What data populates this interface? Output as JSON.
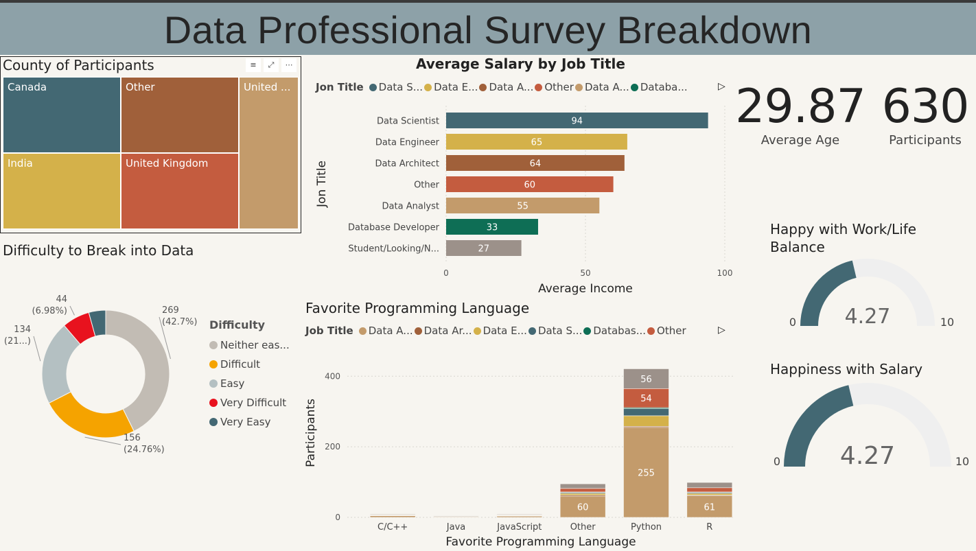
{
  "header": {
    "title": "Data Professional Survey Breakdown"
  },
  "treemap": {
    "title": "County of Participants",
    "tools": [
      "filter-icon",
      "focus-icon",
      "more-icon"
    ],
    "cells": [
      {
        "label": "Canada",
        "color": "#436873"
      },
      {
        "label": "Other",
        "color": "#a0603a"
      },
      {
        "label": "United ...",
        "color": "#c39b6b"
      },
      {
        "label": "India",
        "color": "#d4b14a"
      },
      {
        "label": "United Kingdom",
        "color": "#c45c3f"
      }
    ]
  },
  "salary_chart": {
    "title": "Average Salary by Job Title",
    "legend_title": "Jon Title",
    "legend_items": [
      {
        "label": "Data S...",
        "color": "#436873"
      },
      {
        "label": "Data E...",
        "color": "#d4b14a"
      },
      {
        "label": "Data A...",
        "color": "#a0603a"
      },
      {
        "label": "Other",
        "color": "#c45c3f"
      },
      {
        "label": "Data A...",
        "color": "#c39b6b"
      },
      {
        "label": "Databa...",
        "color": "#0e6e55"
      }
    ]
  },
  "programming_chart": {
    "title": "Favorite Programming Language",
    "legend_title": "Job Title",
    "legend_items": [
      {
        "label": "Data A...",
        "color": "#c39b6b"
      },
      {
        "label": "Data Ar...",
        "color": "#a0603a"
      },
      {
        "label": "Data E...",
        "color": "#d4b14a"
      },
      {
        "label": "Data S...",
        "color": "#436873"
      },
      {
        "label": "Databas...",
        "color": "#0e6e55"
      },
      {
        "label": "Other",
        "color": "#c45c3f"
      }
    ]
  },
  "difficulty": {
    "title": "Difficulty to Break into Data",
    "legend_title": "Difficulty",
    "legend_items": [
      {
        "label": "Neither eas...",
        "color": "#c2bcb4"
      },
      {
        "label": "Difficult",
        "color": "#f5a300"
      },
      {
        "label": "Easy",
        "color": "#b4c0c2"
      },
      {
        "label": "Very Difficult",
        "color": "#e8121e"
      },
      {
        "label": "Very Easy",
        "color": "#436873"
      }
    ]
  },
  "kpis": {
    "age": {
      "value": "29.87",
      "label": "Average Age"
    },
    "participants": {
      "value": "630",
      "label": "Participants"
    }
  },
  "gauges": [
    {
      "title_line1": "Happy with Work/Life",
      "title_line2": "Balance",
      "value": 4.27,
      "value_label": "4.27",
      "min_label": "0",
      "max_label": "10",
      "min": 0,
      "max": 10,
      "fill_color": "#436873",
      "track_color": "#efefef"
    },
    {
      "title_line1": "Happiness with Salary",
      "title_line2": "",
      "value": 4.27,
      "value_label": "4.27",
      "min_label": "0",
      "max_label": "10",
      "min": 0,
      "max": 10,
      "fill_color": "#436873",
      "track_color": "#efefef"
    }
  ],
  "chart_data": [
    {
      "type": "bar",
      "orientation": "horizontal",
      "title": "Average Salary by Job Title",
      "xlabel": "Average Income",
      "ylabel": "Jon Title",
      "xlim": [
        0,
        100
      ],
      "xticks": [
        "0",
        "50",
        "100"
      ],
      "categories": [
        "Data Scientist",
        "Data Engineer",
        "Data Architect",
        "Other",
        "Data Analyst",
        "Database Developer",
        "Student/Looking/N..."
      ],
      "values": [
        94,
        65,
        64,
        60,
        55,
        33,
        27
      ],
      "colors": [
        "#436873",
        "#d4b14a",
        "#a0603a",
        "#c45c3f",
        "#c39b6b",
        "#0e6e55",
        "#9c918a"
      ]
    },
    {
      "type": "bar",
      "stacked": true,
      "title": "Favorite Programming Language",
      "xlabel": "Favorite Programming Language",
      "ylabel": "Participants",
      "ylim": [
        0,
        420
      ],
      "yticks": [
        "0",
        "200",
        "400"
      ],
      "categories": [
        "C/C++",
        "Java",
        "JavaScript",
        "Other",
        "Python",
        "R"
      ],
      "series": [
        {
          "color": "#c39b6b",
          "values": [
            5,
            2,
            4,
            60,
            255,
            61
          ]
        },
        {
          "color": "#a0603a",
          "values": [
            1,
            0,
            1,
            3,
            3,
            2
          ]
        },
        {
          "color": "#d4b14a",
          "values": [
            1,
            0,
            1,
            5,
            30,
            5
          ]
        },
        {
          "color": "#436873",
          "values": [
            1,
            0,
            1,
            3,
            20,
            3
          ]
        },
        {
          "color": "#0e6e55",
          "values": [
            0,
            0,
            0,
            1,
            3,
            1
          ]
        },
        {
          "color": "#c45c3f",
          "values": [
            1,
            1,
            1,
            10,
            54,
            12
          ]
        },
        {
          "color": "#9c918a",
          "values": [
            1,
            1,
            1,
            13,
            56,
            15
          ]
        }
      ],
      "data_labels": [
        {
          "category": "Other",
          "series": 0,
          "text": "60"
        },
        {
          "category": "Python",
          "series": 0,
          "text": "255"
        },
        {
          "category": "Python",
          "series": 5,
          "text": "54"
        },
        {
          "category": "Python",
          "series": 6,
          "text": "56"
        },
        {
          "category": "R",
          "series": 0,
          "text": "61"
        }
      ]
    },
    {
      "type": "pie",
      "donut": true,
      "title": "Difficulty to Break into Data",
      "categories": [
        "Neither eas...",
        "Difficult",
        "Easy",
        "Very Difficult",
        "Very Easy"
      ],
      "values": [
        269,
        156,
        134,
        44,
        27
      ],
      "colors": [
        "#c2bcb4",
        "#f5a300",
        "#b4c0c2",
        "#e8121e",
        "#436873"
      ],
      "labels": [
        {
          "line1": "269",
          "line2": "(42.7%)"
        },
        {
          "line1": "156",
          "line2": "(24.76%)"
        },
        {
          "line1": "134",
          "line2": "(21...)"
        },
        {
          "line1": "44",
          "line2": "(6.98%)"
        }
      ]
    }
  ]
}
